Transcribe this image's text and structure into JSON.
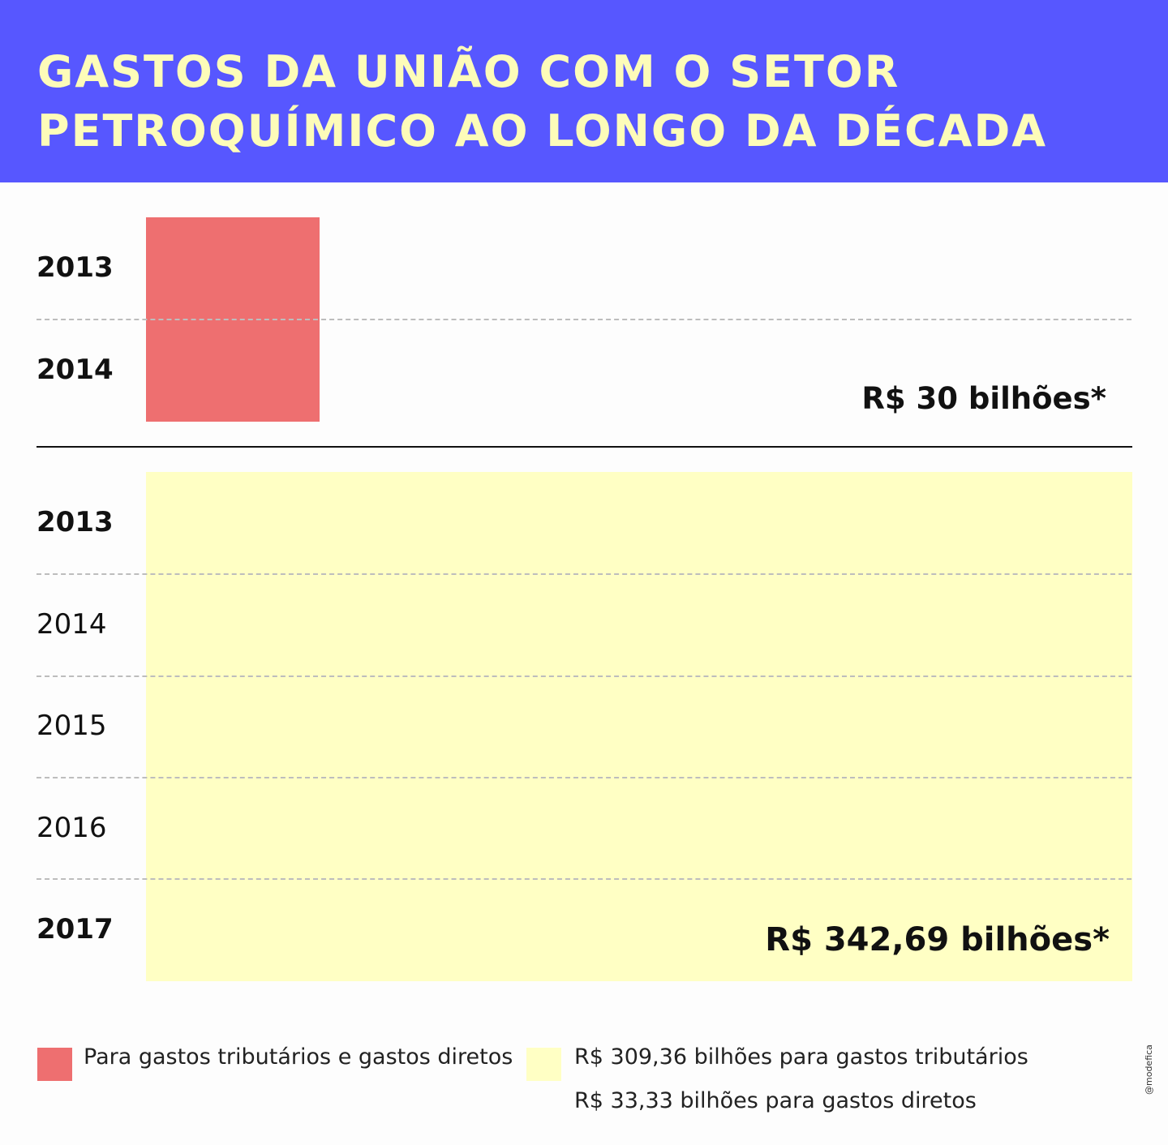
{
  "title_lines": [
    "GASTOS DA UNIÃO COM O SETOR",
    "PETROQUÍMICO AO LONGO DA DÉCADA"
  ],
  "colors": {
    "header": "#5757ff",
    "title": "#fdfcb9",
    "direct": "#ee6f70",
    "tax": "#ffffc4"
  },
  "chart_data": {
    "type": "bar",
    "title": "GASTOS DA UNIÃO COM O SETOR PETROQUÍMICO AO LONGO DA DÉCADA",
    "series": [
      {
        "years": [
          "2013",
          "2014"
        ],
        "total_label": "R$ 30 bilhões*",
        "value": 30,
        "legend": "Para gastos tributários e gastos diretos"
      },
      {
        "years": [
          "2013",
          "2014",
          "2015",
          "2016",
          "2017"
        ],
        "total_label": "R$ 342,69 bilhões*",
        "value": 342.69,
        "legend_lines": [
          "R$ 309,36 bilhões para gastos tributários",
          "R$ 33,33 bilhões para gastos diretos"
        ]
      }
    ]
  },
  "credit": "@modefica"
}
